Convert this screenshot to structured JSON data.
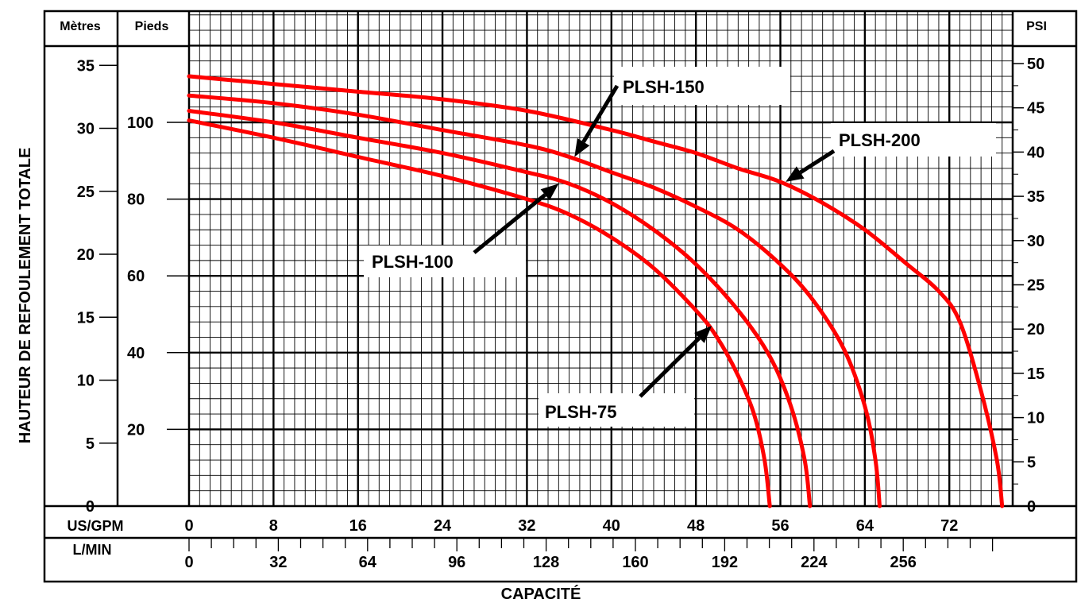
{
  "chart_data": {
    "type": "line",
    "title": "",
    "xlabel": "CAPACITÉ",
    "ylabel": "HAUTEUR DE REFOULEMENT TOTALE",
    "x_units": "US/GPM",
    "y_units": "Pieds",
    "xlim": [
      0,
      78
    ],
    "ylim": [
      0,
      115
    ],
    "grid": true,
    "header": {
      "metres": "Mètres",
      "pieds": "Pieds",
      "psi": "PSI",
      "usgpm": "US/GPM",
      "lmin": "L/MIN"
    },
    "axis_ticks": {
      "metres": [
        "35",
        "30",
        "25",
        "20",
        "15",
        "10",
        "5",
        "0"
      ],
      "metres_values": [
        35,
        30,
        25,
        20,
        15,
        10,
        5,
        0
      ],
      "pieds": [
        "100",
        "80",
        "60",
        "40",
        "20"
      ],
      "pieds_values": [
        100,
        80,
        60,
        40,
        20
      ],
      "psi": [
        "50",
        "45",
        "40",
        "35",
        "30",
        "25",
        "20",
        "15",
        "10",
        "5",
        "0"
      ],
      "psi_values": [
        50,
        45,
        40,
        35,
        30,
        25,
        20,
        15,
        10,
        5,
        0
      ],
      "usgpm": [
        "0",
        "8",
        "16",
        "24",
        "32",
        "40",
        "48",
        "56",
        "64",
        "72"
      ],
      "usgpm_values": [
        0,
        8,
        16,
        24,
        32,
        40,
        48,
        56,
        64,
        72
      ],
      "lmin": [
        "0",
        "32",
        "64",
        "96",
        "128",
        "160",
        "192",
        "224",
        "256"
      ],
      "lmin_values": [
        0,
        32,
        64,
        96,
        128,
        160,
        192,
        224,
        256
      ]
    },
    "series": [
      {
        "name": "PLSH-75",
        "x": [
          0,
          8,
          16,
          24,
          32,
          36,
          40,
          44,
          48,
          50,
          52,
          53.5,
          54.5,
          55
        ],
        "y": [
          100.5,
          96,
          91,
          86,
          80,
          76,
          70,
          62,
          51,
          44,
          34,
          24,
          12,
          0
        ]
      },
      {
        "name": "PLSH-100",
        "x": [
          0,
          8,
          16,
          24,
          32,
          36,
          40,
          44,
          48,
          52,
          55,
          57,
          58.3,
          58.8
        ],
        "y": [
          103,
          100,
          96,
          92,
          87,
          84,
          79,
          72,
          63,
          51,
          39,
          26,
          12,
          0
        ]
      },
      {
        "name": "PLSH-150",
        "x": [
          0,
          8,
          16,
          24,
          32,
          36,
          40,
          44,
          48,
          52,
          56,
          59,
          62,
          64,
          65,
          65.4
        ],
        "y": [
          107,
          105,
          102,
          98,
          94,
          91,
          87,
          83,
          78,
          72,
          63,
          54,
          41,
          26,
          12,
          0
        ]
      },
      {
        "name": "PLSH-200",
        "x": [
          0,
          8,
          16,
          24,
          32,
          40,
          44,
          48,
          52,
          56,
          60,
          64,
          68,
          71,
          73,
          75,
          76.5,
          77
        ],
        "y": [
          112,
          110,
          108,
          106,
          103,
          98,
          95,
          92,
          88,
          84.5,
          79,
          72,
          63,
          56,
          48,
          30,
          12,
          0
        ]
      }
    ],
    "annotations": [
      {
        "label": "PLSH-150",
        "target_x": 36.5,
        "target_y": 91
      },
      {
        "label": "PLSH-200",
        "target_x": 56.5,
        "target_y": 84.5
      },
      {
        "label": "PLSH-100",
        "target_x": 35,
        "target_y": 84
      },
      {
        "label": "PLSH-75",
        "target_x": 49.5,
        "target_y": 47
      }
    ],
    "curve_color": "#ff0000",
    "grid_color": "#000000"
  }
}
